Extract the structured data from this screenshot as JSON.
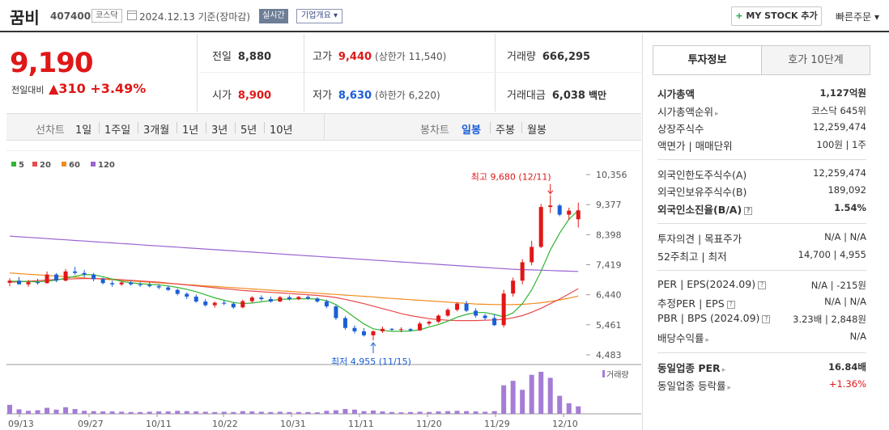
{
  "header": {
    "name": "꿈비",
    "code": "407400",
    "market": "코스닥",
    "date_text": "2024.12.13  기준(장마감)",
    "realtime": "실시간",
    "overview": "기업개요 ▾",
    "mystock_plus": "+",
    "mystock": " MY STOCK 추가",
    "quick_order": "빠른주문 ▾"
  },
  "price": {
    "current": "9,190",
    "change_label": "전일대비",
    "change_arrow": "▲",
    "change_value": "310",
    "change_pct": "+3.49%"
  },
  "summary": {
    "prev_label": "전일",
    "prev": "8,880",
    "high_label": "고가",
    "high": "9,440",
    "high_sub": "(상한가 11,540)",
    "volume_label": "거래량",
    "volume": "666,295",
    "open_label": "시가",
    "open": "8,900",
    "low_label": "저가",
    "low": "8,630",
    "low_sub": "(하한가 6,220)",
    "amount_label": "거래대금",
    "amount": "6,038",
    "amount_unit": "백만"
  },
  "period_bar": {
    "line_label": "선차트",
    "line_items": [
      "1일",
      "1주일",
      "3개월",
      "1년",
      "3년",
      "5년",
      "10년"
    ],
    "candle_label": "봉차트",
    "candle_items": [
      "일봉",
      "주봉",
      "월봉"
    ],
    "candle_active": "일봉"
  },
  "chart_data": {
    "type": "candlestick",
    "ma_legend": [
      {
        "label": "5",
        "color": "#32b432"
      },
      {
        "label": "20",
        "color": "#e84a4a"
      },
      {
        "label": "60",
        "color": "#f08c1e"
      },
      {
        "label": "120",
        "color": "#9a64d2"
      }
    ],
    "y_ticks": [
      "10,356",
      "9,377",
      "8,398",
      "7,419",
      "6,440",
      "5,461",
      "4,483"
    ],
    "y_range": [
      4483,
      10356
    ],
    "x_labels": [
      "09/13",
      "09/27",
      "10/11",
      "10/22",
      "10/31",
      "11/11",
      "11/20",
      "11/29",
      "12/10"
    ],
    "annotation_high": "최고 9,680 (12/11)",
    "annotation_low": "최저 4,955 (11/15)",
    "volume_label": "거래량",
    "candles": [
      [
        6830,
        6980,
        6720,
        6900
      ],
      [
        6900,
        7020,
        6800,
        6780
      ],
      [
        6780,
        6920,
        6700,
        6850
      ],
      [
        6850,
        6960,
        6770,
        6820
      ],
      [
        6820,
        7200,
        6800,
        7100
      ],
      [
        7100,
        7150,
        6850,
        6900
      ],
      [
        6900,
        7280,
        6880,
        7200
      ],
      [
        7200,
        7350,
        7100,
        7150
      ],
      [
        7150,
        7250,
        7000,
        7100
      ],
      [
        7100,
        7150,
        6880,
        6950
      ],
      [
        6950,
        7000,
        6780,
        6820
      ],
      [
        6820,
        6900,
        6700,
        6780
      ],
      [
        6780,
        6880,
        6730,
        6840
      ],
      [
        6840,
        6900,
        6740,
        6780
      ],
      [
        6780,
        6850,
        6700,
        6760
      ],
      [
        6760,
        6840,
        6680,
        6720
      ],
      [
        6720,
        6790,
        6620,
        6680
      ],
      [
        6680,
        6740,
        6560,
        6600
      ],
      [
        6600,
        6640,
        6420,
        6470
      ],
      [
        6470,
        6520,
        6300,
        6380
      ],
      [
        6380,
        6450,
        6180,
        6220
      ],
      [
        6220,
        6300,
        6050,
        6100
      ],
      [
        6100,
        6220,
        6020,
        6180
      ],
      [
        6180,
        6260,
        6100,
        6150
      ],
      [
        6150,
        6200,
        5980,
        6030
      ],
      [
        6030,
        6280,
        6000,
        6230
      ],
      [
        6230,
        6400,
        6180,
        6350
      ],
      [
        6350,
        6420,
        6240,
        6300
      ],
      [
        6300,
        6380,
        6180,
        6220
      ],
      [
        6220,
        6400,
        6200,
        6360
      ],
      [
        6360,
        6420,
        6250,
        6300
      ],
      [
        6300,
        6400,
        6260,
        6370
      ],
      [
        6370,
        6420,
        6280,
        6320
      ],
      [
        6320,
        6360,
        6180,
        6220
      ],
      [
        6220,
        6280,
        6000,
        6060
      ],
      [
        6060,
        6100,
        5620,
        5680
      ],
      [
        5680,
        5740,
        5300,
        5360
      ],
      [
        5360,
        5440,
        5180,
        5250
      ],
      [
        5250,
        5350,
        5080,
        5120
      ],
      [
        5120,
        5280,
        4955,
        5250
      ],
      [
        5250,
        5400,
        5200,
        5330
      ],
      [
        5330,
        5360,
        5260,
        5300
      ],
      [
        5300,
        5380,
        5220,
        5320
      ],
      [
        5320,
        5360,
        5240,
        5280
      ],
      [
        5280,
        5560,
        5260,
        5500
      ],
      [
        5500,
        5600,
        5440,
        5560
      ],
      [
        5560,
        5800,
        5520,
        5760
      ],
      [
        5760,
        6000,
        5720,
        5950
      ],
      [
        5950,
        6200,
        5900,
        6150
      ],
      [
        6150,
        6240,
        5880,
        5920
      ],
      [
        5920,
        6000,
        5700,
        5760
      ],
      [
        5760,
        5820,
        5620,
        5680
      ],
      [
        5680,
        5800,
        5420,
        5450
      ],
      [
        5450,
        6600,
        5380,
        6480
      ],
      [
        6480,
        7000,
        6380,
        6900
      ],
      [
        6900,
        7600,
        6780,
        7500
      ],
      [
        7500,
        8200,
        7400,
        8000
      ],
      [
        8000,
        9400,
        7960,
        9300
      ],
      [
        9300,
        9680,
        9100,
        9350
      ],
      [
        9350,
        9400,
        9000,
        9050
      ],
      [
        9050,
        9280,
        8880,
        9180
      ],
      [
        8900,
        9440,
        8630,
        9190
      ]
    ],
    "ma5": [
      6880,
      6880,
      6870,
      6860,
      6880,
      6920,
      6980,
      7040,
      7100,
      7090,
      7030,
      6950,
      6880,
      6830,
      6800,
      6780,
      6760,
      6730,
      6680,
      6620,
      6540,
      6440,
      6340,
      6260,
      6190,
      6150,
      6170,
      6210,
      6250,
      6290,
      6300,
      6310,
      6310,
      6300,
      6250,
      6120,
      5930,
      5700,
      5490,
      5330,
      5280,
      5250,
      5250,
      5260,
      5300,
      5390,
      5470,
      5580,
      5710,
      5800,
      5860,
      5860,
      5800,
      5720,
      5850,
      6150,
      6600,
      7200,
      7900,
      8450,
      8900,
      9190
    ],
    "ma20": [
      6850,
      6860,
      6880,
      6900,
      6920,
      6940,
      6950,
      6960,
      6970,
      6970,
      6960,
      6950,
      6930,
      6910,
      6890,
      6870,
      6850,
      6820,
      6790,
      6760,
      6730,
      6700,
      6670,
      6640,
      6610,
      6580,
      6560,
      6540,
      6520,
      6500,
      6480,
      6460,
      6440,
      6420,
      6390,
      6350,
      6290,
      6220,
      6150,
      6070,
      5990,
      5910,
      5830,
      5760,
      5710,
      5660,
      5630,
      5610,
      5600,
      5600,
      5600,
      5610,
      5620,
      5640,
      5690,
      5760,
      5870,
      6000,
      6150,
      6300,
      6470,
      6640
    ],
    "ma60": [
      7150,
      7130,
      7110,
      7090,
      7070,
      7050,
      7030,
      7010,
      6990,
      6970,
      6950,
      6930,
      6910,
      6890,
      6870,
      6850,
      6830,
      6810,
      6790,
      6770,
      6750,
      6730,
      6710,
      6690,
      6670,
      6650,
      6630,
      6610,
      6590,
      6570,
      6550,
      6530,
      6510,
      6490,
      6470,
      6450,
      6430,
      6410,
      6390,
      6370,
      6340,
      6320,
      6300,
      6280,
      6260,
      6240,
      6220,
      6200,
      6180,
      6160,
      6140,
      6130,
      6120,
      6120,
      6120,
      6130,
      6150,
      6180,
      6220,
      6270,
      6330,
      6400
    ],
    "ma120": [
      8350,
      8330,
      8310,
      8290,
      8270,
      8250,
      8230,
      8210,
      8190,
      8170,
      8150,
      8130,
      8110,
      8090,
      8070,
      8050,
      8030,
      8010,
      7990,
      7970,
      7950,
      7930,
      7910,
      7890,
      7870,
      7850,
      7830,
      7810,
      7790,
      7770,
      7750,
      7730,
      7710,
      7690,
      7670,
      7650,
      7630,
      7610,
      7590,
      7570,
      7550,
      7530,
      7510,
      7490,
      7470,
      7450,
      7430,
      7410,
      7390,
      7370,
      7350,
      7330,
      7310,
      7290,
      7270,
      7260,
      7250,
      7240,
      7230,
      7220,
      7210,
      7200
    ],
    "volumes": [
      30,
      15,
      10,
      12,
      20,
      14,
      22,
      16,
      10,
      9,
      8,
      8,
      7,
      6,
      6,
      7,
      8,
      8,
      10,
      9,
      8,
      7,
      6,
      7,
      6,
      9,
      8,
      7,
      6,
      7,
      6,
      6,
      6,
      5,
      10,
      12,
      16,
      14,
      9,
      11,
      8,
      6,
      5,
      6,
      7,
      6,
      8,
      9,
      10,
      9,
      8,
      7,
      9,
      95,
      110,
      80,
      130,
      140,
      120,
      60,
      35,
      25
    ]
  },
  "info_panel": {
    "tab_active": "투자정보",
    "tab_other": "호가 10단계",
    "rows": [
      {
        "k": "시가총액",
        "v": "1,127억원",
        "bold": true
      },
      {
        "k": "시가총액순위",
        "v": "코스닥 645위",
        "caret": true
      },
      {
        "k": "상장주식수",
        "v": "12,259,474"
      },
      {
        "k": "액면가 | 매매단위",
        "v": "100원 | 1주"
      },
      {
        "k": "외국인한도주식수(A)",
        "v": "12,259,474"
      },
      {
        "k": "외국인보유주식수(B)",
        "v": "189,092"
      },
      {
        "k": "외국인소진율(B/A)",
        "v": "1.54%",
        "bold": true,
        "q": true
      },
      {
        "k": "투자의견 | 목표주가",
        "v": "N/A | N/A"
      },
      {
        "k": "52주최고 | 최저",
        "v": "14,700 | 4,955"
      },
      {
        "k": "PER | EPS(2024.09)",
        "v": "N/A | -215원",
        "q": true
      },
      {
        "k": "추정PER | EPS",
        "v": "N/A | N/A",
        "q": true
      },
      {
        "k": "PBR | BPS (2024.09)",
        "v": "3.23배 | 2,848원",
        "q": true
      },
      {
        "k": "배당수익률",
        "v": "N/A",
        "caret": true
      },
      {
        "k": "동일업종 PER",
        "v": "16.84배",
        "bold": true,
        "caret": true
      },
      {
        "k": "동일업종 등락률",
        "v": "+1.36%",
        "caret": true,
        "red": true
      }
    ]
  }
}
